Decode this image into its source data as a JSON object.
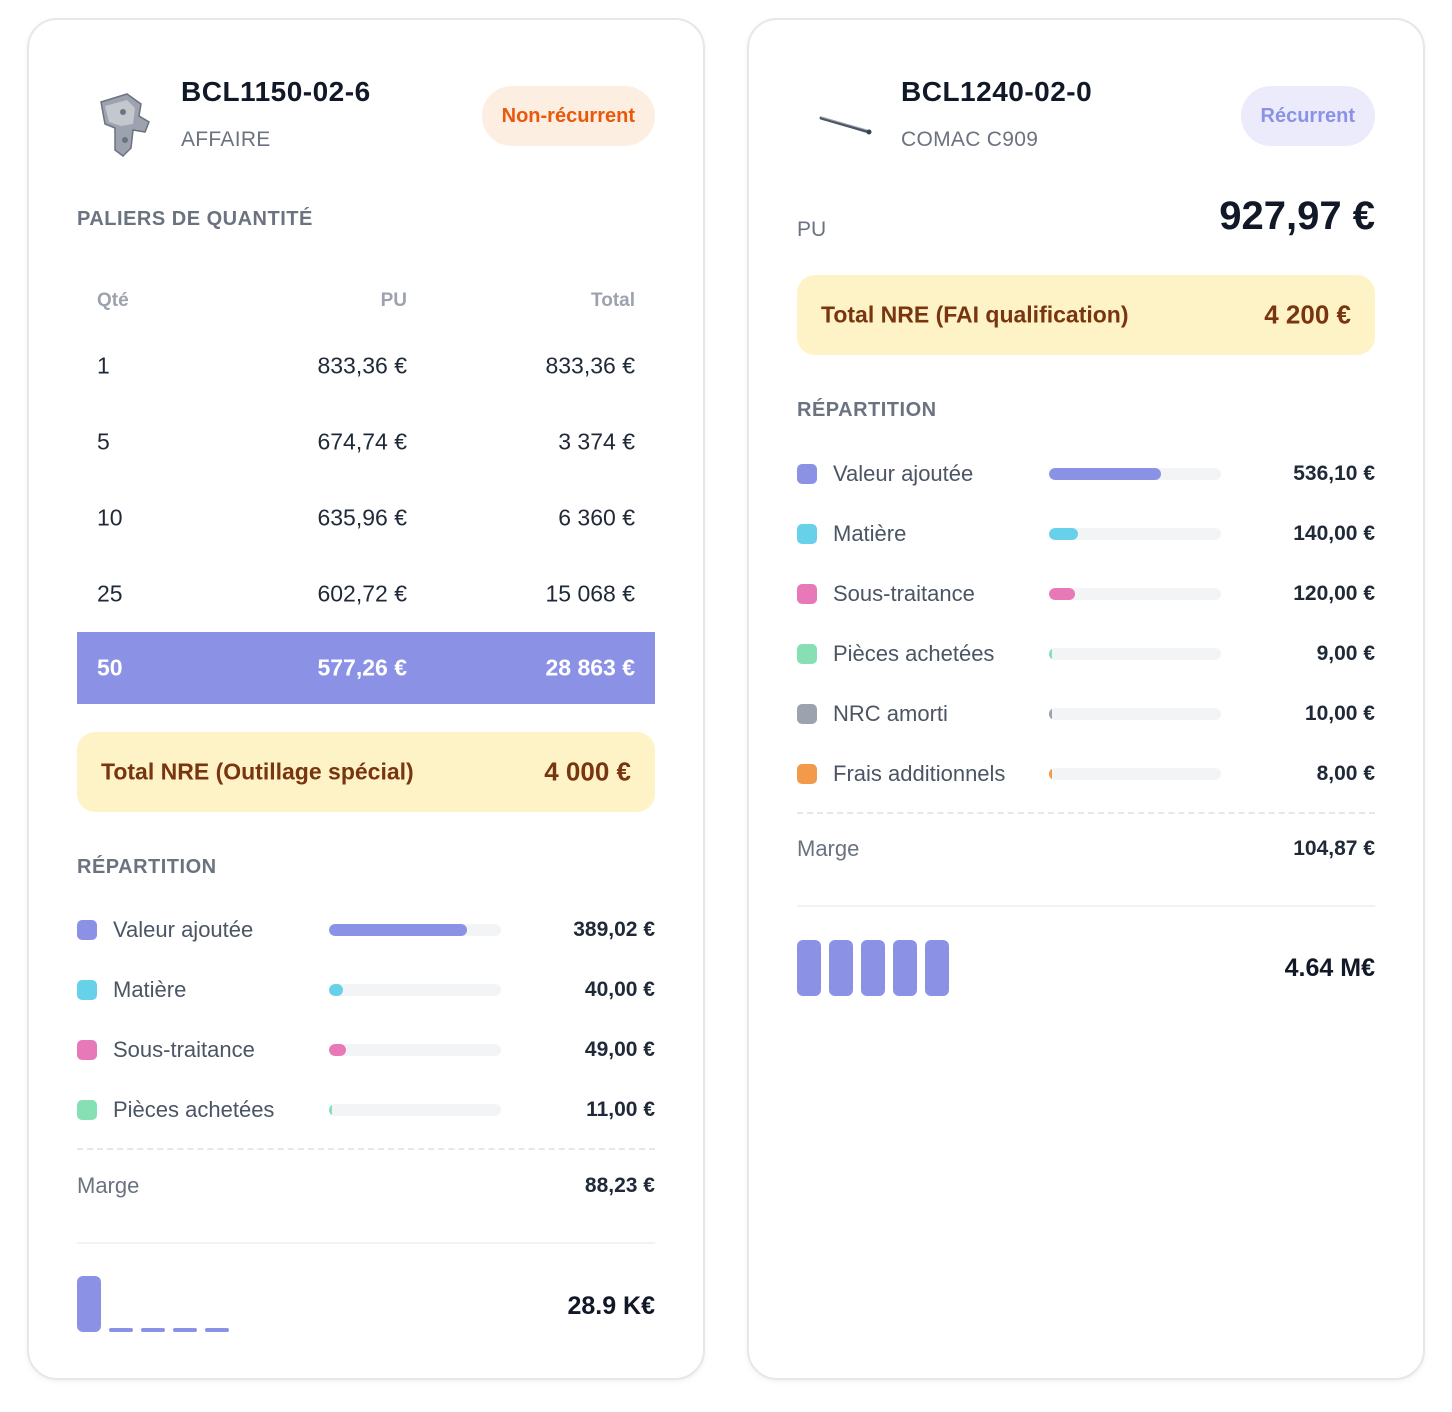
{
  "cards": [
    {
      "reference": "BCL1150-02-6",
      "client": "AFFAIRE",
      "badge": "Non-récurrent",
      "tiers_title": "PALIERS DE QUANTITÉ",
      "tiers_headers": {
        "qty": "Qté",
        "pu": "PU",
        "total": "Total"
      },
      "tiers": [
        {
          "qty": "1",
          "pu": "833,36 €",
          "total": "833,36 €"
        },
        {
          "qty": "5",
          "pu": "674,74 €",
          "total": "3 374 €"
        },
        {
          "qty": "10",
          "pu": "635,96 €",
          "total": "6 360 €"
        },
        {
          "qty": "25",
          "pu": "602,72 €",
          "total": "15 068 €"
        },
        {
          "qty": "50",
          "pu": "577,26 €",
          "total": "28 863 €"
        }
      ],
      "selected_tier": "50",
      "nre": {
        "label": "Total NRE (Outillage spécial)",
        "value": "4 000 €"
      },
      "repartition_title": "RÉPARTITION",
      "repartition": [
        {
          "label": "Valeur ajoutée",
          "value": "389,02 €",
          "share": 0.8,
          "color": "#8b92e6"
        },
        {
          "label": "Matière",
          "value": "40,00 €",
          "share": 0.08,
          "color": "#67d1ea"
        },
        {
          "label": "Sous-traitance",
          "value": "49,00 €",
          "share": 0.1,
          "color": "#e879b9"
        },
        {
          "label": "Pièces achetées",
          "value": "11,00 €",
          "share": 0.02,
          "color": "#86e0b3"
        }
      ],
      "marge": {
        "label": "Marge",
        "value": "88,23 €"
      },
      "sparkline": {
        "heights": [
          1.0,
          0.07,
          0.07,
          0.07,
          0.07
        ],
        "total": "28.9 K€"
      }
    },
    {
      "reference": "BCL1240-02-0",
      "client": "COMAC C909",
      "badge": "Récurrent",
      "pu_label": "PU",
      "pu_value": "927,97 €",
      "nre": {
        "label": "Total NRE (FAI qualification)",
        "value": "4 200 €"
      },
      "repartition_title": "RÉPARTITION",
      "repartition": [
        {
          "label": "Valeur ajoutée",
          "value": "536,10 €",
          "share": 0.65,
          "color": "#8b92e6"
        },
        {
          "label": "Matière",
          "value": "140,00 €",
          "share": 0.17,
          "color": "#67d1ea"
        },
        {
          "label": "Sous-traitance",
          "value": "120,00 €",
          "share": 0.15,
          "color": "#e879b9"
        },
        {
          "label": "Pièces achetées",
          "value": "9,00 €",
          "share": 0.01,
          "color": "#86e0b3"
        },
        {
          "label": "NRC amorti",
          "value": "10,00 €",
          "share": 0.01,
          "color": "#9ca3af"
        },
        {
          "label": "Frais additionnels",
          "value": "8,00 €",
          "share": 0.01,
          "color": "#f29a4a"
        }
      ],
      "marge": {
        "label": "Marge",
        "value": "104,87 €"
      },
      "sparkline": {
        "heights": [
          1.0,
          1.0,
          1.0,
          1.0,
          1.0
        ],
        "total": "4.64 M€"
      }
    }
  ]
}
